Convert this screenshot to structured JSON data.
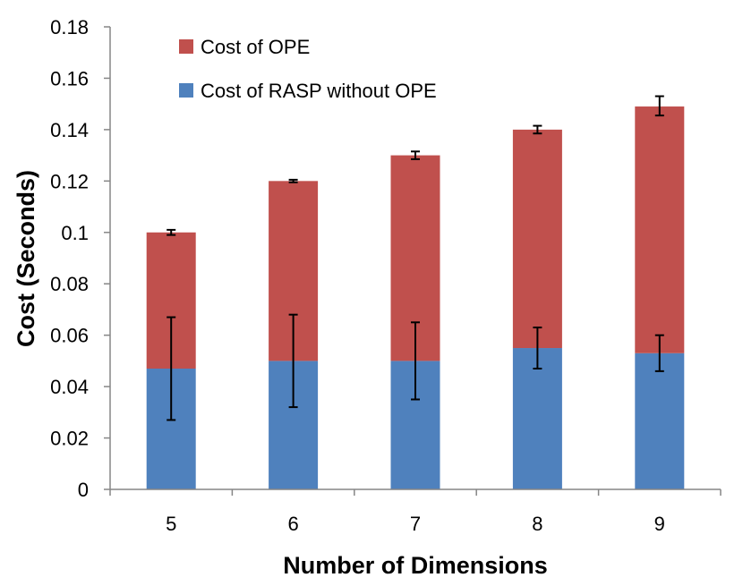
{
  "chart_data": {
    "type": "bar",
    "stacked": true,
    "xlabel": "Number of Dimensions",
    "ylabel": "Cost (Seconds)",
    "categories": [
      "5",
      "6",
      "7",
      "8",
      "9"
    ],
    "ylim": [
      0,
      0.18
    ],
    "yticks": [
      "0",
      "0.02",
      "0.04",
      "0.06",
      "0.08",
      "0.1",
      "0.12",
      "0.14",
      "0.16",
      "0.18"
    ],
    "grid": false,
    "legend_position": "top-left",
    "series": [
      {
        "name": "Cost of RASP without OPE",
        "color": "#4F81BD",
        "values": [
          0.047,
          0.05,
          0.05,
          0.055,
          0.053
        ],
        "error_low": [
          0.027,
          0.032,
          0.035,
          0.047,
          0.046
        ],
        "error_high": [
          0.067,
          0.068,
          0.065,
          0.063,
          0.06
        ]
      },
      {
        "name": "Cost of OPE",
        "color": "#C0504D",
        "values": [
          0.053,
          0.07,
          0.08,
          0.085,
          0.096
        ],
        "error_low": [
          0.099,
          0.1195,
          0.1285,
          0.1385,
          0.1455
        ],
        "error_high": [
          0.101,
          0.1205,
          0.1315,
          0.1415,
          0.153
        ]
      }
    ],
    "legend_order": [
      "Cost of OPE",
      "Cost of RASP without OPE"
    ]
  }
}
